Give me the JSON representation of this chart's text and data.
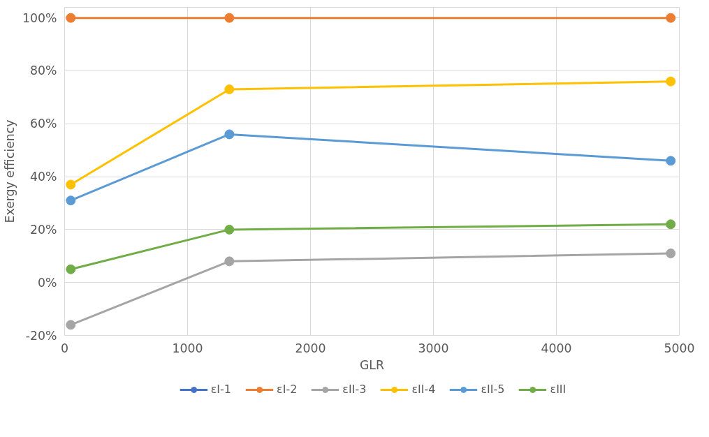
{
  "chart_data": {
    "type": "line",
    "xlabel": "GLR",
    "ylabel": "Exergy efficiency",
    "x": [
      50,
      1340,
      4930
    ],
    "series": [
      {
        "name": "εI-1",
        "color": "#4472c4",
        "values": [
          null,
          null,
          null
        ]
      },
      {
        "name": "εI-2",
        "color": "#ed7d31",
        "values": [
          100,
          100,
          100
        ]
      },
      {
        "name": "εII-3",
        "color": "#a5a5a5",
        "values": [
          -16,
          8,
          11
        ]
      },
      {
        "name": "εII-4",
        "color": "#ffc000",
        "values": [
          37,
          73,
          76
        ]
      },
      {
        "name": "εII-5",
        "color": "#5b9bd5",
        "values": [
          31,
          56,
          46
        ]
      },
      {
        "name": "εIII",
        "color": "#70ad47",
        "values": [
          5,
          20,
          22
        ]
      }
    ],
    "xlim": [
      0,
      5000
    ],
    "xticks": [
      0,
      1000,
      2000,
      3000,
      4000,
      5000
    ],
    "ylim": [
      -20,
      104
    ],
    "yticks": [
      {
        "value": -20,
        "label": "-20%"
      },
      {
        "value": 0,
        "label": "0%"
      },
      {
        "value": 20,
        "label": "20%"
      },
      {
        "value": 40,
        "label": "40%"
      },
      {
        "value": 60,
        "label": "60%"
      },
      {
        "value": 80,
        "label": "80%"
      },
      {
        "value": 100,
        "label": "100%"
      }
    ],
    "grid": true,
    "legend": "bottom",
    "marker": "circle",
    "line_style": "solid"
  }
}
